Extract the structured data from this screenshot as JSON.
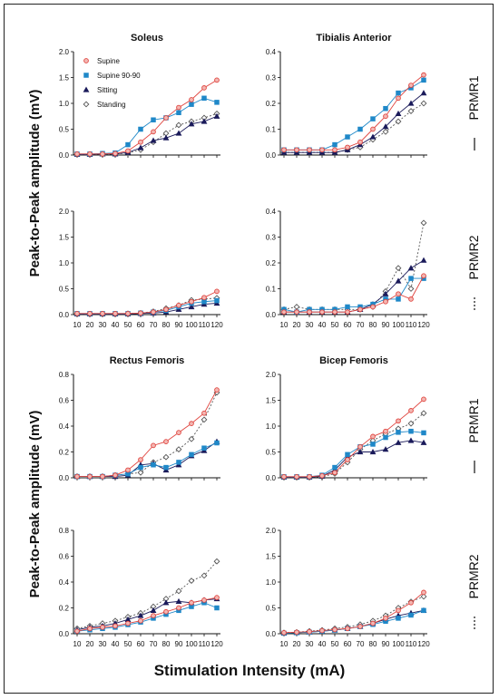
{
  "figure": {
    "ylabel": "Peak-to-Peak amplitude (mV)",
    "xlabel": "Stimulation Intensity (mA)",
    "row_labels": [
      "PRMR1",
      "PRMR2",
      "PRMR1",
      "PRMR2"
    ],
    "legend": [
      "Supine",
      "Supine 90-90",
      "Sitting",
      "Standing"
    ]
  },
  "colors": {
    "supine": "#e0453f",
    "supine9090": "#1f88c8",
    "sitting": "#1a1a5a",
    "standing": "#555555"
  },
  "chart_data": [
    {
      "type": "line",
      "title": "Soleus",
      "response": "PRMR1",
      "x": [
        10,
        20,
        30,
        40,
        50,
        60,
        70,
        80,
        90,
        100,
        110,
        120
      ],
      "ylim": [
        0,
        2.0
      ],
      "yticks": [
        "0.0",
        "0.5",
        "1.0",
        "1.5",
        "2.0"
      ],
      "series": [
        {
          "name": "Supine",
          "values": [
            0.02,
            0.02,
            0.02,
            0.03,
            0.08,
            0.25,
            0.45,
            0.72,
            0.92,
            1.07,
            1.3,
            1.45
          ]
        },
        {
          "name": "Supine 90-90",
          "values": [
            0.02,
            0.02,
            0.03,
            0.04,
            0.2,
            0.5,
            0.68,
            0.72,
            0.82,
            0.98,
            1.1,
            1.02
          ]
        },
        {
          "name": "Sitting",
          "values": [
            0.01,
            0.01,
            0.02,
            0.02,
            0.05,
            0.14,
            0.28,
            0.33,
            0.42,
            0.6,
            0.65,
            0.75
          ]
        },
        {
          "name": "Standing",
          "values": [
            0.01,
            0.01,
            0.01,
            0.02,
            0.04,
            0.1,
            0.25,
            0.42,
            0.58,
            0.65,
            0.72,
            0.8
          ]
        }
      ]
    },
    {
      "type": "line",
      "title": "Tibialis Anterior",
      "response": "PRMR1",
      "x": [
        10,
        20,
        30,
        40,
        50,
        60,
        70,
        80,
        90,
        100,
        110,
        120
      ],
      "ylim": [
        0,
        0.4
      ],
      "yticks": [
        "0.0",
        "0.1",
        "0.2",
        "0.3",
        "0.4"
      ],
      "series": [
        {
          "name": "Supine",
          "values": [
            0.02,
            0.02,
            0.02,
            0.02,
            0.02,
            0.03,
            0.05,
            0.1,
            0.15,
            0.22,
            0.27,
            0.31
          ]
        },
        {
          "name": "Supine 90-90",
          "values": [
            0.02,
            0.02,
            0.02,
            0.02,
            0.04,
            0.07,
            0.1,
            0.14,
            0.18,
            0.24,
            0.26,
            0.29
          ]
        },
        {
          "name": "Sitting",
          "values": [
            0.01,
            0.01,
            0.01,
            0.01,
            0.01,
            0.02,
            0.04,
            0.07,
            0.11,
            0.16,
            0.2,
            0.24
          ]
        },
        {
          "name": "Standing",
          "values": [
            0.01,
            0.01,
            0.01,
            0.01,
            0.01,
            0.02,
            0.03,
            0.06,
            0.09,
            0.13,
            0.17,
            0.2
          ]
        }
      ]
    },
    {
      "type": "line",
      "title": "",
      "response": "PRMR2",
      "x": [
        10,
        20,
        30,
        40,
        50,
        60,
        70,
        80,
        90,
        100,
        110,
        120
      ],
      "ylim": [
        0,
        2.0
      ],
      "yticks": [
        "0.0",
        "0.5",
        "1.0",
        "1.5",
        "2.0"
      ],
      "series": [
        {
          "name": "Supine",
          "values": [
            0.02,
            0.02,
            0.02,
            0.02,
            0.02,
            0.03,
            0.05,
            0.1,
            0.18,
            0.25,
            0.33,
            0.45
          ]
        },
        {
          "name": "Supine 90-90",
          "values": [
            0.02,
            0.02,
            0.02,
            0.02,
            0.02,
            0.03,
            0.05,
            0.08,
            0.15,
            0.22,
            0.25,
            0.27
          ]
        },
        {
          "name": "Sitting",
          "values": [
            0.01,
            0.01,
            0.01,
            0.01,
            0.01,
            0.02,
            0.03,
            0.05,
            0.1,
            0.15,
            0.2,
            0.22
          ]
        },
        {
          "name": "Standing",
          "values": [
            0.01,
            0.01,
            0.01,
            0.01,
            0.02,
            0.03,
            0.06,
            0.12,
            0.18,
            0.28,
            0.3,
            0.32
          ]
        }
      ]
    },
    {
      "type": "line",
      "title": "",
      "response": "PRMR2",
      "x": [
        10,
        20,
        30,
        40,
        50,
        60,
        70,
        80,
        90,
        100,
        110,
        120
      ],
      "ylim": [
        0,
        0.4
      ],
      "yticks": [
        "0.0",
        "0.1",
        "0.2",
        "0.3",
        "0.4"
      ],
      "series": [
        {
          "name": "Supine",
          "values": [
            0.01,
            0.01,
            0.01,
            0.01,
            0.01,
            0.01,
            0.02,
            0.03,
            0.05,
            0.08,
            0.06,
            0.15
          ]
        },
        {
          "name": "Supine 90-90",
          "values": [
            0.02,
            0.01,
            0.02,
            0.02,
            0.02,
            0.03,
            0.03,
            0.04,
            0.06,
            0.06,
            0.14,
            0.14
          ]
        },
        {
          "name": "Sitting",
          "values": [
            0.01,
            0.01,
            0.01,
            0.01,
            0.01,
            0.01,
            0.02,
            0.04,
            0.08,
            0.13,
            0.18,
            0.21
          ]
        },
        {
          "name": "Standing",
          "values": [
            0.02,
            0.03,
            0.02,
            0.02,
            0.02,
            0.02,
            0.02,
            0.03,
            0.09,
            0.18,
            0.1,
            0.355
          ]
        }
      ]
    },
    {
      "type": "line",
      "title": "Rectus Femoris",
      "response": "PRMR1",
      "x": [
        10,
        20,
        30,
        40,
        50,
        60,
        70,
        80,
        90,
        100,
        110,
        120
      ],
      "ylim": [
        0,
        0.8
      ],
      "yticks": [
        "0.0",
        "0.2",
        "0.4",
        "0.6",
        "0.8"
      ],
      "series": [
        {
          "name": "Supine",
          "values": [
            0.01,
            0.01,
            0.01,
            0.02,
            0.06,
            0.14,
            0.25,
            0.28,
            0.35,
            0.42,
            0.5,
            0.68
          ]
        },
        {
          "name": "Supine 90-90",
          "values": [
            0.01,
            0.01,
            0.01,
            0.02,
            0.03,
            0.08,
            0.1,
            0.08,
            0.12,
            0.18,
            0.23,
            0.27
          ]
        },
        {
          "name": "Sitting",
          "values": [
            0.01,
            0.01,
            0.01,
            0.01,
            0.02,
            0.1,
            0.11,
            0.06,
            0.1,
            0.17,
            0.21,
            0.28
          ]
        },
        {
          "name": "Standing",
          "values": [
            0.01,
            0.01,
            0.01,
            0.02,
            0.03,
            0.04,
            0.12,
            0.16,
            0.22,
            0.3,
            0.45,
            0.66
          ]
        }
      ]
    },
    {
      "type": "line",
      "title": "Bicep Femoris",
      "response": "PRMR1",
      "x": [
        10,
        20,
        30,
        40,
        50,
        60,
        70,
        80,
        90,
        100,
        110,
        120
      ],
      "ylim": [
        0,
        2.0
      ],
      "yticks": [
        "0.0",
        "0.5",
        "1.0",
        "1.5",
        "2.0"
      ],
      "series": [
        {
          "name": "Supine",
          "values": [
            0.02,
            0.02,
            0.02,
            0.04,
            0.1,
            0.35,
            0.6,
            0.8,
            0.9,
            1.1,
            1.3,
            1.52
          ]
        },
        {
          "name": "Supine 90-90",
          "values": [
            0.02,
            0.02,
            0.02,
            0.05,
            0.2,
            0.45,
            0.6,
            0.65,
            0.78,
            0.88,
            0.9,
            0.87
          ]
        },
        {
          "name": "Sitting",
          "values": [
            0.01,
            0.01,
            0.01,
            0.03,
            0.15,
            0.4,
            0.5,
            0.5,
            0.55,
            0.68,
            0.72,
            0.68
          ]
        },
        {
          "name": "Standing",
          "values": [
            0.01,
            0.01,
            0.01,
            0.02,
            0.08,
            0.3,
            0.55,
            0.72,
            0.85,
            0.95,
            1.05,
            1.25
          ]
        }
      ]
    },
    {
      "type": "line",
      "title": "",
      "response": "PRMR2",
      "x": [
        10,
        20,
        30,
        40,
        50,
        60,
        70,
        80,
        90,
        100,
        110,
        120
      ],
      "ylim": [
        0,
        0.8
      ],
      "yticks": [
        "0.0",
        "0.2",
        "0.4",
        "0.6",
        "0.8"
      ],
      "series": [
        {
          "name": "Supine",
          "values": [
            0.02,
            0.04,
            0.05,
            0.06,
            0.08,
            0.1,
            0.14,
            0.17,
            0.2,
            0.24,
            0.26,
            0.28
          ]
        },
        {
          "name": "Supine 90-90",
          "values": [
            0.02,
            0.03,
            0.04,
            0.05,
            0.07,
            0.09,
            0.12,
            0.15,
            0.18,
            0.21,
            0.24,
            0.2
          ]
        },
        {
          "name": "Sitting",
          "values": [
            0.03,
            0.05,
            0.06,
            0.08,
            0.11,
            0.14,
            0.18,
            0.24,
            0.25,
            0.24,
            0.26,
            0.27
          ]
        },
        {
          "name": "Standing",
          "values": [
            0.04,
            0.06,
            0.08,
            0.1,
            0.13,
            0.16,
            0.21,
            0.27,
            0.33,
            0.41,
            0.45,
            0.56
          ]
        }
      ]
    },
    {
      "type": "line",
      "title": "",
      "response": "PRMR2",
      "x": [
        10,
        20,
        30,
        40,
        50,
        60,
        70,
        80,
        90,
        100,
        110,
        120
      ],
      "ylim": [
        0,
        2.0
      ],
      "yticks": [
        "0.0",
        "0.5",
        "1.0",
        "1.5",
        "2.0"
      ],
      "series": [
        {
          "name": "Supine",
          "values": [
            0.02,
            0.03,
            0.04,
            0.06,
            0.08,
            0.1,
            0.14,
            0.2,
            0.3,
            0.45,
            0.6,
            0.8
          ]
        },
        {
          "name": "Supine 90-90",
          "values": [
            0.01,
            0.02,
            0.03,
            0.05,
            0.07,
            0.1,
            0.14,
            0.18,
            0.24,
            0.3,
            0.36,
            0.45
          ]
        },
        {
          "name": "Sitting",
          "values": [
            0.01,
            0.02,
            0.03,
            0.05,
            0.07,
            0.1,
            0.14,
            0.2,
            0.28,
            0.35,
            0.4,
            0.45
          ]
        },
        {
          "name": "Standing",
          "values": [
            0.02,
            0.03,
            0.05,
            0.07,
            0.1,
            0.13,
            0.18,
            0.25,
            0.35,
            0.5,
            0.62,
            0.72
          ]
        }
      ]
    }
  ]
}
